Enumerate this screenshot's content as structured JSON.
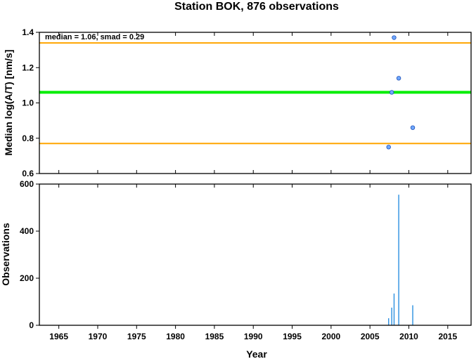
{
  "chart_data": [
    {
      "type": "scatter",
      "title": "Station BOK, 876 observations",
      "ylabel": "Median log(A/T) [nm/s]",
      "xlabel": "",
      "xlim": [
        1962.5,
        2018
      ],
      "ylim": [
        0.6,
        1.4
      ],
      "yticks": [
        "0.6",
        "0.8",
        "1.0",
        "1.2",
        "1.4"
      ],
      "annotation": "median = 1.06, smad = 0.29",
      "hlines": [
        {
          "role": "median",
          "value": 1.06,
          "color": "#00ee00"
        },
        {
          "role": "upper",
          "value": 1.34,
          "color": "#ffa500"
        },
        {
          "role": "lower",
          "value": 0.77,
          "color": "#ffa500"
        }
      ],
      "points": [
        {
          "x": 2007.4,
          "y": 0.75
        },
        {
          "x": 2007.8,
          "y": 1.06
        },
        {
          "x": 2008.1,
          "y": 1.37
        },
        {
          "x": 2008.7,
          "y": 1.14
        },
        {
          "x": 2010.5,
          "y": 0.86
        }
      ],
      "point_color": "#6fa8ff",
      "grid": false
    },
    {
      "type": "bar",
      "xlabel": "Year",
      "ylabel": "Observations",
      "xlim": [
        1962.5,
        2018
      ],
      "ylim": [
        0,
        600
      ],
      "yticks": [
        "0",
        "200",
        "400",
        "600"
      ],
      "xticks": [
        "1965",
        "1970",
        "1975",
        "1980",
        "1985",
        "1990",
        "1995",
        "2000",
        "2005",
        "2010",
        "2015"
      ],
      "bars": [
        {
          "x": 2007.4,
          "value": 30
        },
        {
          "x": 2007.8,
          "value": 75
        },
        {
          "x": 2008.1,
          "value": 135
        },
        {
          "x": 2008.7,
          "value": 555
        },
        {
          "x": 2010.5,
          "value": 85
        }
      ],
      "bar_color": "#2a8fe0",
      "grid": false
    }
  ]
}
